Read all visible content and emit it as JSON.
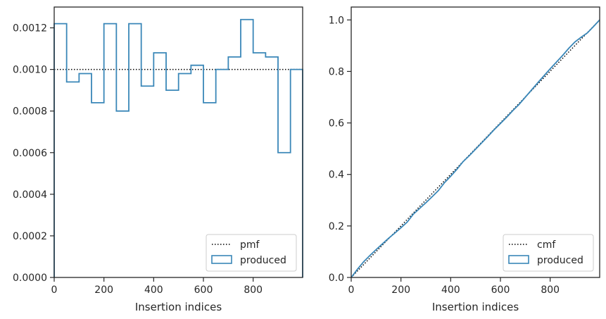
{
  "colors": {
    "series": "#3a87b8",
    "reference": "#000000",
    "axes": "#262626",
    "legend_border": "#cccccc"
  },
  "chart_data": [
    {
      "type": "line",
      "subtype": "step-histogram",
      "xlabel": "Insertion indices",
      "ylabel": "",
      "xlim": [
        0,
        999
      ],
      "ylim": [
        0,
        0.0013
      ],
      "xticks": [
        0,
        200,
        400,
        600,
        800
      ],
      "xtick_labels": [
        "0",
        "200",
        "400",
        "600",
        "800"
      ],
      "yticks": [
        0,
        0.0002,
        0.0004,
        0.0006,
        0.0008,
        0.001,
        0.0012
      ],
      "ytick_labels": [
        "0.0000",
        "0.0002",
        "0.0004",
        "0.0006",
        "0.0008",
        "0.0010",
        "0.0012"
      ],
      "grid": false,
      "legend_position": "lower right",
      "reference": {
        "name": "pmf",
        "style": "dotted",
        "x": [
          0,
          999
        ],
        "y": [
          0.001,
          0.001
        ]
      },
      "series": [
        {
          "name": "produced",
          "style": "step",
          "bin_edges": [
            0,
            50,
            100,
            150,
            200,
            250,
            300,
            350,
            400,
            450,
            500,
            550,
            600,
            650,
            700,
            750,
            800,
            850,
            900,
            950,
            999
          ],
          "values": [
            0.00122,
            0.00094,
            0.00098,
            0.00084,
            0.00122,
            0.0008,
            0.00122,
            0.00092,
            0.00108,
            0.0009,
            0.00098,
            0.00102,
            0.00084,
            0.001,
            0.00106,
            0.00124,
            0.00108,
            0.00106,
            0.0006,
            0.001
          ]
        }
      ]
    },
    {
      "type": "line",
      "xlabel": "Insertion indices",
      "ylabel": "",
      "xlim": [
        0,
        999
      ],
      "ylim": [
        0,
        1.05
      ],
      "xticks": [
        0,
        200,
        400,
        600,
        800
      ],
      "xtick_labels": [
        "0",
        "200",
        "400",
        "600",
        "800"
      ],
      "yticks": [
        0,
        0.2,
        0.4,
        0.6,
        0.8,
        1.0
      ],
      "ytick_labels": [
        "0.0",
        "0.2",
        "0.4",
        "0.6",
        "0.8",
        "1.0"
      ],
      "grid": false,
      "legend_position": "lower right",
      "reference": {
        "name": "cmf",
        "style": "dotted",
        "x": [
          0,
          999
        ],
        "y": [
          0,
          1.0
        ]
      },
      "series": [
        {
          "name": "produced",
          "style": "line",
          "x": [
            0,
            25,
            50,
            75,
            100,
            125,
            150,
            175,
            200,
            225,
            250,
            275,
            300,
            325,
            350,
            375,
            400,
            425,
            450,
            475,
            500,
            525,
            550,
            575,
            600,
            625,
            650,
            675,
            700,
            725,
            750,
            775,
            800,
            825,
            850,
            875,
            900,
            925,
            950,
            975,
            999
          ],
          "y": [
            0,
            0.032,
            0.061,
            0.085,
            0.108,
            0.13,
            0.152,
            0.172,
            0.193,
            0.215,
            0.246,
            0.268,
            0.29,
            0.313,
            0.337,
            0.368,
            0.393,
            0.42,
            0.45,
            0.473,
            0.498,
            0.523,
            0.548,
            0.574,
            0.598,
            0.622,
            0.648,
            0.672,
            0.7,
            0.728,
            0.756,
            0.783,
            0.81,
            0.836,
            0.862,
            0.89,
            0.915,
            0.933,
            0.95,
            0.975,
            1.0
          ]
        }
      ]
    }
  ]
}
